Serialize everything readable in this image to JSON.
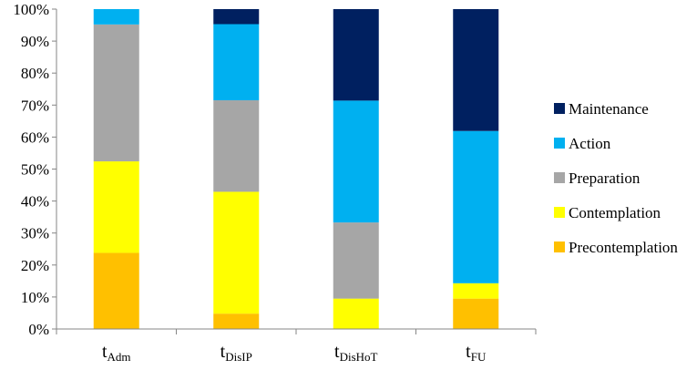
{
  "chart_data": {
    "type": "bar",
    "stacked": true,
    "percent": true,
    "categories": [
      {
        "main": "t",
        "sub": "Adm"
      },
      {
        "main": "t",
        "sub": "DisIP"
      },
      {
        "main": "t",
        "sub": "DisHoT"
      },
      {
        "main": "t",
        "sub": "FU"
      }
    ],
    "ylim": [
      0,
      100
    ],
    "yticks": [
      "0%",
      "10%",
      "20%",
      "30%",
      "40%",
      "50%",
      "60%",
      "70%",
      "80%",
      "90%",
      "100%"
    ],
    "grid": false,
    "legend_position": "right",
    "series": [
      {
        "name": "Precontemplation",
        "color": "#FFC000",
        "values": [
          23.8,
          4.8,
          0,
          9.5
        ]
      },
      {
        "name": "Contemplation",
        "color": "#FFFF00",
        "values": [
          28.6,
          38.1,
          9.5,
          4.8
        ]
      },
      {
        "name": "Preparation",
        "color": "#A6A6A6",
        "values": [
          42.8,
          28.6,
          23.8,
          0
        ]
      },
      {
        "name": "Action",
        "color": "#00B0F0",
        "values": [
          4.8,
          23.8,
          38.1,
          47.6
        ]
      },
      {
        "name": "Maintenance",
        "color": "#002060",
        "values": [
          0,
          4.7,
          28.6,
          38.1
        ]
      }
    ],
    "legend_order": [
      "Maintenance",
      "Action",
      "Preparation",
      "Contemplation",
      "Precontemplation"
    ]
  }
}
